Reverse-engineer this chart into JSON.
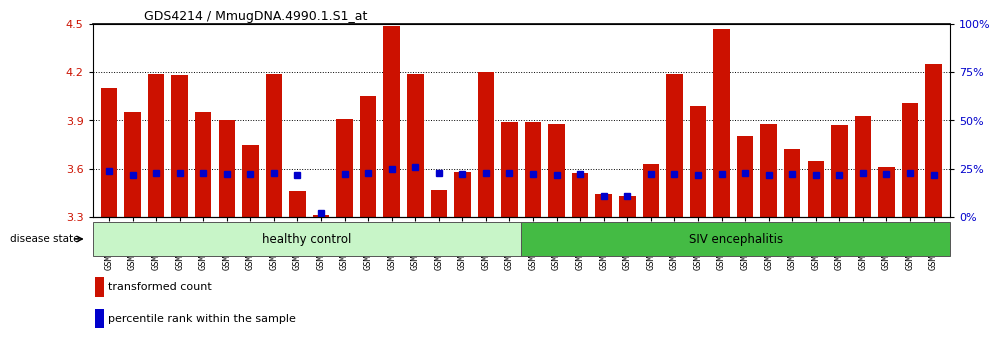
{
  "title": "GDS4214 / MmugDNA.4990.1.S1_at",
  "samples": [
    "GSM347802",
    "GSM347803",
    "GSM347810",
    "GSM347811",
    "GSM347812",
    "GSM347813",
    "GSM347814",
    "GSM347815",
    "GSM347816",
    "GSM347817",
    "GSM347818",
    "GSM347820",
    "GSM347821",
    "GSM347822",
    "GSM347825",
    "GSM347826",
    "GSM347827",
    "GSM347828",
    "GSM347800",
    "GSM347801",
    "GSM347804",
    "GSM347805",
    "GSM347806",
    "GSM347807",
    "GSM347808",
    "GSM347809",
    "GSM347823",
    "GSM347824",
    "GSM347829",
    "GSM347830",
    "GSM347831",
    "GSM347832",
    "GSM347833",
    "GSM347834",
    "GSM347835",
    "GSM347836"
  ],
  "transformed_count": [
    4.1,
    3.95,
    4.19,
    4.18,
    3.95,
    3.9,
    3.75,
    4.19,
    3.46,
    3.31,
    3.91,
    4.05,
    4.49,
    4.19,
    3.47,
    3.58,
    4.2,
    3.89,
    3.89,
    3.88,
    3.57,
    3.44,
    3.43,
    3.63,
    4.19,
    3.99,
    4.47,
    3.8,
    3.88,
    3.72,
    3.65,
    3.87,
    3.93,
    3.61,
    4.01,
    4.25
  ],
  "percentile_rank": [
    3.585,
    3.562,
    3.575,
    3.57,
    3.572,
    3.568,
    3.565,
    3.575,
    3.56,
    3.325,
    3.566,
    3.572,
    3.6,
    3.61,
    3.575,
    3.565,
    3.572,
    3.57,
    3.565,
    3.56,
    3.568,
    3.432,
    3.428,
    3.568,
    3.567,
    3.562,
    3.565,
    3.57,
    3.562,
    3.565,
    3.562,
    3.56,
    3.572,
    3.567,
    3.575,
    3.562
  ],
  "healthy_count": 18,
  "group_labels": [
    "healthy control",
    "SIV encephalitis"
  ],
  "bar_color": "#CC1100",
  "dot_color": "#0000CC",
  "ylim_left": [
    3.3,
    4.5
  ],
  "ylim_right": [
    0,
    100
  ],
  "yticks_left": [
    3.3,
    3.6,
    3.9,
    4.2,
    4.5
  ],
  "yticks_right": [
    0,
    25,
    50,
    75,
    100
  ],
  "grid_values": [
    3.6,
    3.9,
    4.2
  ],
  "left_color": "#CC1100",
  "right_color": "#0000CC"
}
